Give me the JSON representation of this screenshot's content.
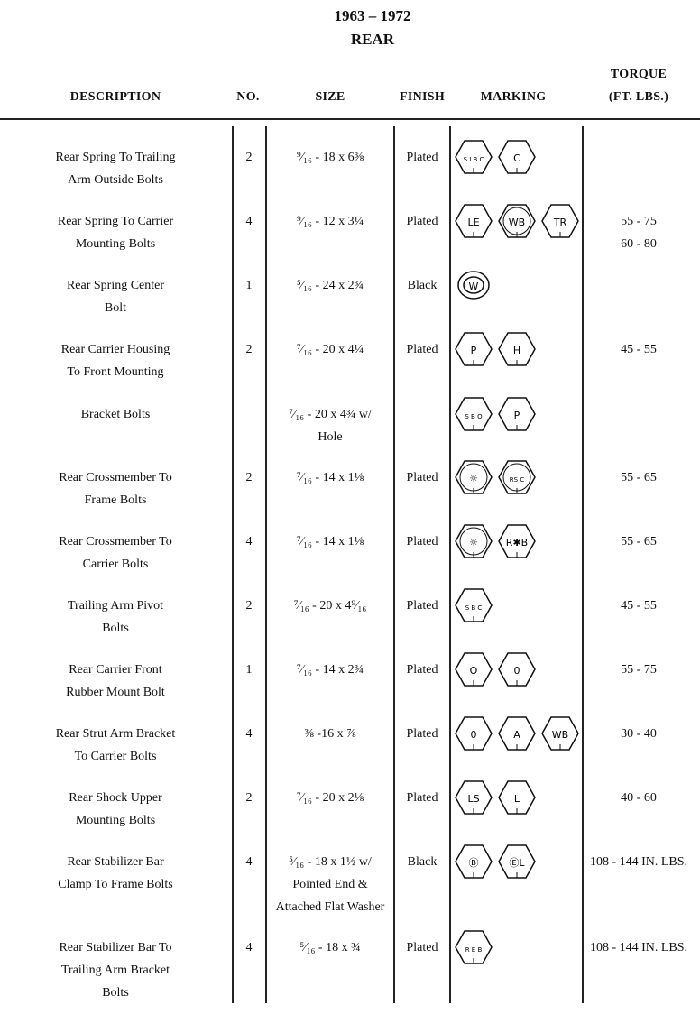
{
  "title": {
    "years": "1963 – 1972",
    "section": "REAR"
  },
  "headers": {
    "description": "DESCRIPTION",
    "no": "NO.",
    "size": "SIZE",
    "finish": "FINISH",
    "marking": "MARKING",
    "torque_line1": "TORQUE",
    "torque_line2": "(FT. LBS.)"
  },
  "rows": [
    {
      "description": [
        "Rear Spring To Trailing",
        "Arm Outside Bolts"
      ],
      "no": "2",
      "size": [
        "⁹⁄₁₆ - 18 x 6⅜"
      ],
      "finish": "Plated",
      "markings": [
        {
          "shape": "hex",
          "text": "S I B C"
        },
        {
          "shape": "hex",
          "text": "C"
        }
      ],
      "torque": []
    },
    {
      "description": [
        "Rear Spring To Carrier",
        "Mounting Bolts"
      ],
      "no": "4",
      "size": [
        "⁹⁄₁₆ - 12 x 3¼"
      ],
      "finish": "Plated",
      "markings": [
        {
          "shape": "hex",
          "text": "LE"
        },
        {
          "shape": "hex-circle",
          "text": "WB"
        },
        {
          "shape": "hex",
          "text": "TR"
        }
      ],
      "torque": [
        "55 - 75",
        "60 - 80"
      ]
    },
    {
      "description": [
        "Rear Spring Center",
        "Bolt"
      ],
      "no": "1",
      "size": [
        "⁵⁄₁₆ - 24 x 2¾"
      ],
      "finish": "Black",
      "markings": [
        {
          "shape": "circle",
          "text": "W"
        }
      ],
      "torque": []
    },
    {
      "description": [
        "Rear Carrier Housing",
        "To Front Mounting"
      ],
      "no": "2",
      "size": [
        "⁷⁄₁₆ - 20 x 4¼"
      ],
      "finish": "Plated",
      "markings": [
        {
          "shape": "hex",
          "text": "P"
        },
        {
          "shape": "hex",
          "text": "H"
        }
      ],
      "torque": [
        "45 - 55"
      ]
    },
    {
      "description": [
        "Bracket Bolts"
      ],
      "no": "",
      "size": [
        "⁷⁄₁₆ - 20 x 4¾ w/",
        "Hole"
      ],
      "finish": "",
      "markings": [
        {
          "shape": "hex",
          "text": "S B O"
        },
        {
          "shape": "hex",
          "text": "P"
        }
      ],
      "torque": []
    },
    {
      "description": [
        "Rear Crossmember To",
        "Frame Bolts"
      ],
      "no": "2",
      "size": [
        "⁷⁄₁₆ - 14 x 1⅛"
      ],
      "finish": "Plated",
      "markings": [
        {
          "shape": "hex-circle",
          "text": "☼"
        },
        {
          "shape": "hex-circle",
          "text": "RS C"
        }
      ],
      "torque": [
        "55 - 65"
      ]
    },
    {
      "description": [
        "Rear Crossmember To",
        "Carrier Bolts"
      ],
      "no": "4",
      "size": [
        "⁷⁄₁₆ - 14 x 1⅛"
      ],
      "finish": "Plated",
      "markings": [
        {
          "shape": "hex-circle",
          "text": "☼"
        },
        {
          "shape": "hex",
          "text": "R✱B"
        }
      ],
      "torque": [
        "55 - 65"
      ]
    },
    {
      "description": [
        "Trailing Arm Pivot",
        "Bolts"
      ],
      "no": "2",
      "size": [
        "⁷⁄₁₆ - 20 x 4⁹⁄₁₆"
      ],
      "finish": "Plated",
      "markings": [
        {
          "shape": "hex",
          "text": "S B C"
        }
      ],
      "torque": [
        "45 - 55"
      ]
    },
    {
      "description": [
        "Rear Carrier Front",
        "Rubber Mount Bolt"
      ],
      "no": "1",
      "size": [
        "⁷⁄₁₆ - 14 x 2¾"
      ],
      "finish": "Plated",
      "markings": [
        {
          "shape": "hex",
          "text": "O"
        },
        {
          "shape": "hex",
          "text": "0"
        }
      ],
      "torque": [
        "55 - 75"
      ]
    },
    {
      "description": [
        "Rear Strut Arm Bracket",
        "To Carrier Bolts"
      ],
      "no": "4",
      "size": [
        "⅜ -16 x ⅞"
      ],
      "finish": "Plated",
      "markings": [
        {
          "shape": "hex",
          "text": "0"
        },
        {
          "shape": "hex",
          "text": "A"
        },
        {
          "shape": "hex",
          "text": "WB"
        }
      ],
      "torque": [
        "30 - 40"
      ]
    },
    {
      "description": [
        "Rear Shock Upper",
        "Mounting Bolts"
      ],
      "no": "2",
      "size": [
        "⁷⁄₁₆ - 20 x 2⅛"
      ],
      "finish": "Plated",
      "markings": [
        {
          "shape": "hex",
          "text": "LS"
        },
        {
          "shape": "hex",
          "text": "L"
        }
      ],
      "torque": [
        "40 - 60"
      ]
    },
    {
      "description": [
        "Rear Stabilizer Bar",
        "Clamp To Frame Bolts"
      ],
      "no": "4",
      "size": [
        "⁵⁄₁₆ - 18 x 1½ w/",
        "Pointed End &",
        "Attached Flat Washer"
      ],
      "finish": "Black",
      "markings": [
        {
          "shape": "hex",
          "text": "Ⓑ"
        },
        {
          "shape": "hex",
          "text": "ⒺL"
        }
      ],
      "torque": [
        "108 - 144 IN. LBS."
      ]
    },
    {
      "description": [
        "Rear Stabilizer Bar To",
        "Trailing Arm Bracket",
        "Bolts"
      ],
      "no": "4",
      "size": [
        "⁵⁄₁₆ - 18 x ¾"
      ],
      "finish": "Plated",
      "markings": [
        {
          "shape": "hex",
          "text": "R E B"
        }
      ],
      "torque": [
        "108 - 144 IN. LBS."
      ]
    }
  ]
}
